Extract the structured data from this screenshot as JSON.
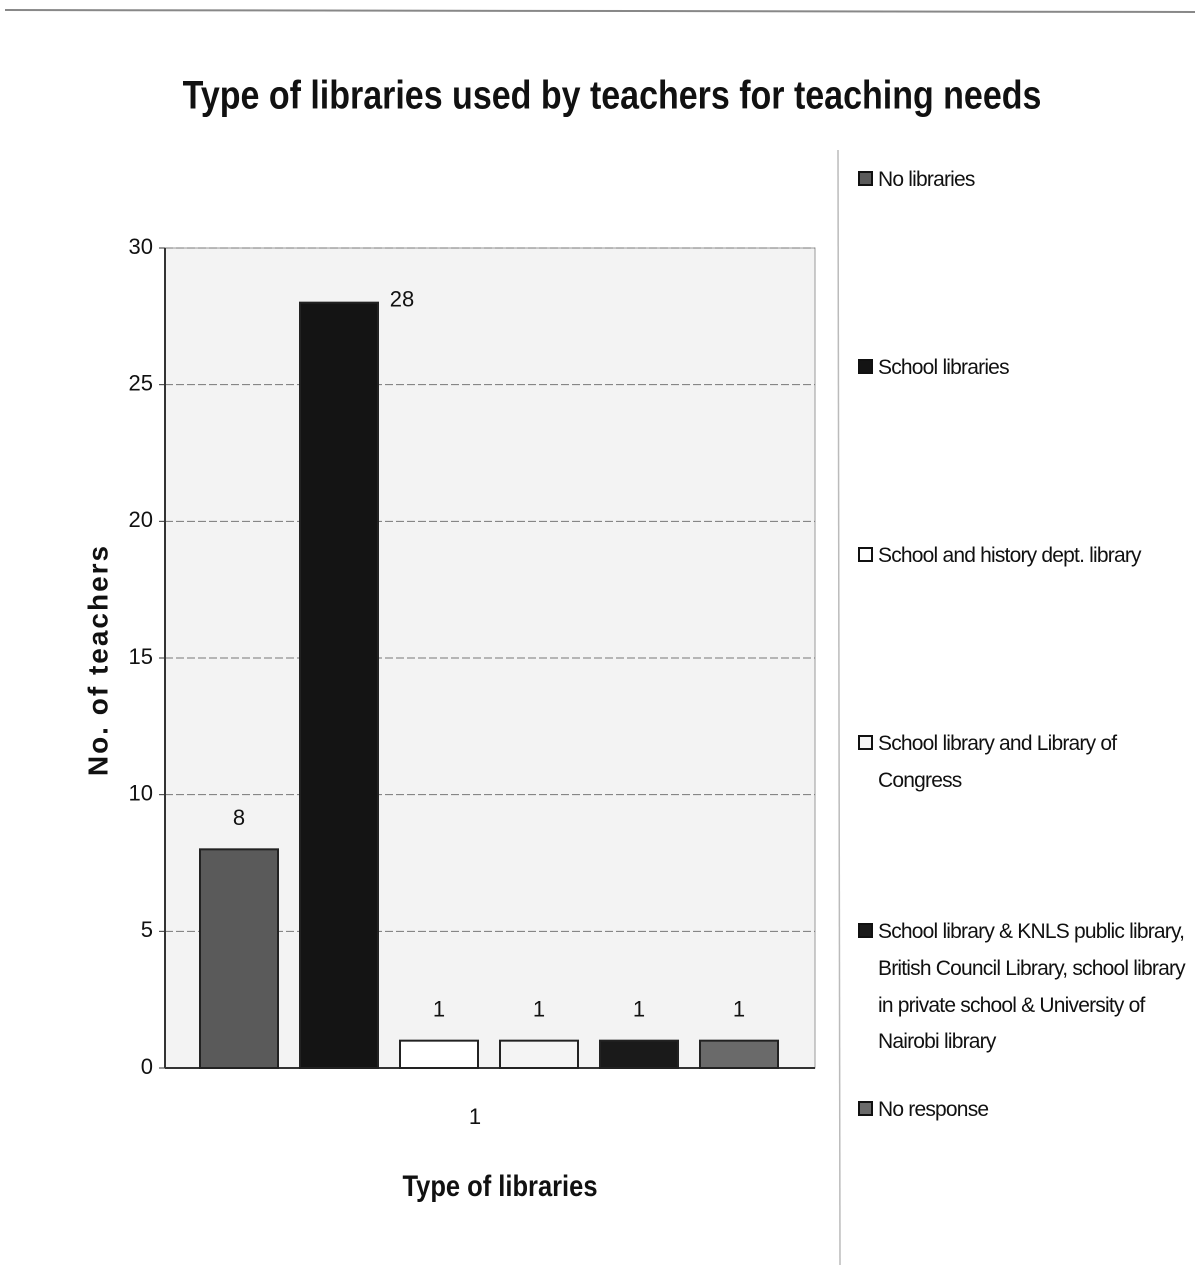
{
  "chart_data": {
    "type": "bar",
    "title": "Type of libraries used by teachers for teaching needs",
    "x_label": "Type of libraries",
    "y_label": "No. of teachers",
    "categories": [
      "1"
    ],
    "series": [
      {
        "name": "No libraries",
        "color": "#5a5a5a",
        "values": [
          8
        ]
      },
      {
        "name": "School libraries",
        "color": "#141414",
        "values": [
          28
        ]
      },
      {
        "name": "School and history dept. library",
        "color": "#ffffff",
        "values": [
          1
        ]
      },
      {
        "name": "School library and Library of Congress",
        "color": "#f4f4f4",
        "values": [
          1
        ]
      },
      {
        "name": "School library & KNLS public library, British Council Library, school library in private school & University of Nairobi library",
        "color": "#1a1a1a",
        "values": [
          1
        ]
      },
      {
        "name": "No response",
        "color": "#6a6a6a",
        "values": [
          1
        ]
      }
    ],
    "ylim": [
      0,
      30
    ],
    "yticks": [
      0,
      5,
      10,
      15,
      20,
      25,
      30
    ],
    "grid": true,
    "legend": "right"
  }
}
